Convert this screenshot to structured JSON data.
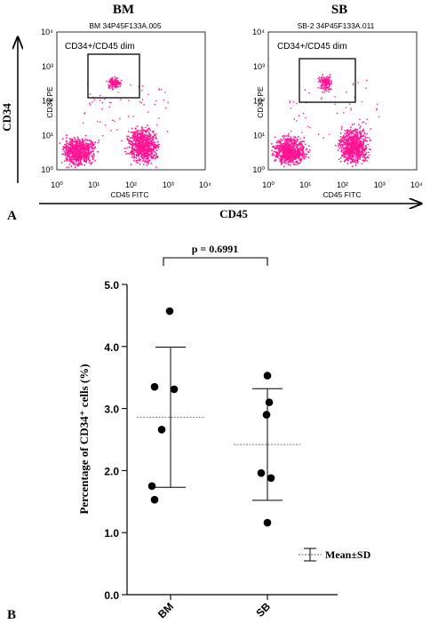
{
  "panel_a": {
    "label": "A",
    "y_arrow_label": "CD34",
    "x_arrow_label": "CD45",
    "plots": [
      {
        "group": "BM",
        "sample_id": "BM 34P45F133A.005",
        "gate_label": "CD34+/CD45 dim",
        "xlabel": "CD45 FITC",
        "ylabel": "CD34 PE"
      },
      {
        "group": "SB",
        "sample_id": "SB-2 34P45F133A.011",
        "gate_label": "CD34+/CD45 dim",
        "xlabel": "CD45 FITC",
        "ylabel": "CD34 PE"
      }
    ],
    "dot_color": "#ff1493"
  },
  "panel_b": {
    "label": "B",
    "pvalue": "p = 0.6991",
    "legend": "Mean±SD"
  },
  "chart_data": [
    {
      "type": "scatter",
      "title": "BM",
      "xlabel": "CD45 FITC",
      "ylabel": "CD34 PE",
      "xscale": "log",
      "yscale": "log",
      "xlim": [
        1,
        10000
      ],
      "ylim": [
        1,
        10000
      ],
      "x_ticks": [
        "10⁰",
        "10¹",
        "10²",
        "10³",
        "10⁴"
      ],
      "y_ticks": [
        "10⁰",
        "10¹",
        "10²",
        "10³",
        "10⁴"
      ],
      "gate": {
        "label": "CD34+/CD45 dim",
        "x_range": [
          12,
          100
        ],
        "y_range": [
          150,
          1200
        ]
      },
      "populations": [
        {
          "x_range": [
            1,
            15
          ],
          "y_range": [
            1,
            12
          ]
        },
        {
          "x_range": [
            60,
            700
          ],
          "y_range": [
            1,
            25
          ]
        },
        {
          "x_range": [
            20,
            60
          ],
          "y_range": [
            200,
            550
          ]
        }
      ]
    },
    {
      "type": "scatter",
      "title": "SB",
      "xlabel": "CD45 FITC",
      "ylabel": "CD34 PE",
      "xscale": "log",
      "yscale": "log",
      "xlim": [
        1,
        10000
      ],
      "ylim": [
        1,
        10000
      ],
      "x_ticks": [
        "10⁰",
        "10¹",
        "10²",
        "10³",
        "10⁴"
      ],
      "y_ticks": [
        "10⁰",
        "10¹",
        "10²",
        "10³",
        "10⁴"
      ],
      "gate": {
        "label": "CD34+/CD45 dim",
        "x_range": [
          12,
          100
        ],
        "y_range": [
          150,
          1200
        ]
      },
      "populations": [
        {
          "x_range": [
            1,
            15
          ],
          "y_range": [
            1,
            12
          ]
        },
        {
          "x_range": [
            60,
            700
          ],
          "y_range": [
            1,
            25
          ]
        },
        {
          "x_range": [
            20,
            60
          ],
          "y_range": [
            150,
            700
          ]
        }
      ]
    },
    {
      "type": "scatter",
      "title": "",
      "xlabel": "",
      "ylabel": "Percentage of CD34⁺ cells (%)",
      "ylim": [
        0,
        5
      ],
      "y_ticks": [
        "0.0",
        "1.0",
        "2.0",
        "3.0",
        "4.0",
        "5.0"
      ],
      "categories": [
        "BM",
        "SB"
      ],
      "series": [
        {
          "category": "BM",
          "values": [
            4.57,
            3.35,
            3.31,
            2.66,
            1.75,
            1.53
          ],
          "mean": 2.86,
          "sd": 1.13
        },
        {
          "category": "SB",
          "values": [
            3.53,
            3.1,
            2.9,
            1.96,
            1.88,
            1.16
          ],
          "mean": 2.42,
          "sd": 0.9
        }
      ],
      "annotation": "p = 0.6991",
      "legend": "Mean±SD",
      "legend_position": "right"
    }
  ]
}
